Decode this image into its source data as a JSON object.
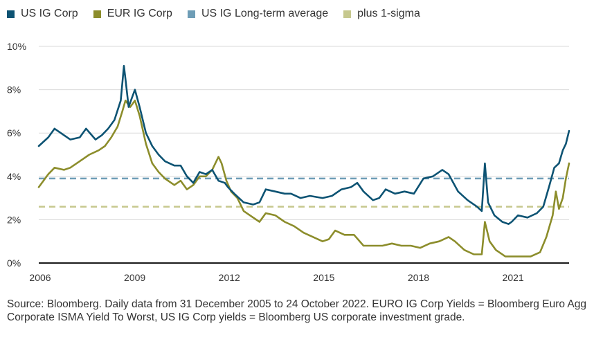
{
  "legend": [
    {
      "label": "US IG Corp",
      "color": "#0d5373"
    },
    {
      "label": "EUR IG Corp",
      "color": "#8c8d2b"
    },
    {
      "label": "US IG Long-term average",
      "color": "#6e9db6"
    },
    {
      "label": "plus 1-sigma",
      "color": "#c6c88e"
    }
  ],
  "source_note": "Source: Bloomberg. Daily data from 31 December 2005 to 24 October 2022. EURO IG Corp Yields = Bloomberg Euro Agg Corporate ISMA Yield To Worst, US IG Corp yields = Bloomberg US corporate investment grade.",
  "chart_data": {
    "type": "line",
    "title": "",
    "xlabel": "",
    "ylabel": "",
    "xlim": [
      2006.0,
      2022.82
    ],
    "ylim": [
      0,
      10
    ],
    "x_ticks": [
      "2006",
      "2009",
      "2012",
      "2015",
      "2018",
      "2021"
    ],
    "x_tick_values": [
      2006,
      2009,
      2012,
      2015,
      2018,
      2021
    ],
    "y_ticks": [
      "0%",
      "2%",
      "4%",
      "6%",
      "8%",
      "10%"
    ],
    "y_tick_values": [
      0,
      2,
      4,
      6,
      8,
      10
    ],
    "grid": true,
    "legend_position": "top",
    "series": [
      {
        "name": "US IG Corp",
        "color": "#0d5373",
        "points": [
          [
            2006.0,
            5.4
          ],
          [
            2006.3,
            5.8
          ],
          [
            2006.5,
            6.2
          ],
          [
            2006.8,
            5.9
          ],
          [
            2007.0,
            5.7
          ],
          [
            2007.3,
            5.8
          ],
          [
            2007.5,
            6.2
          ],
          [
            2007.8,
            5.7
          ],
          [
            2008.0,
            5.9
          ],
          [
            2008.2,
            6.2
          ],
          [
            2008.4,
            6.6
          ],
          [
            2008.6,
            7.5
          ],
          [
            2008.7,
            9.1
          ],
          [
            2008.75,
            8.5
          ],
          [
            2008.85,
            7.2
          ],
          [
            2008.95,
            7.6
          ],
          [
            2009.05,
            8.0
          ],
          [
            2009.2,
            7.2
          ],
          [
            2009.4,
            6.0
          ],
          [
            2009.6,
            5.4
          ],
          [
            2009.8,
            5.0
          ],
          [
            2010.0,
            4.7
          ],
          [
            2010.3,
            4.5
          ],
          [
            2010.5,
            4.5
          ],
          [
            2010.7,
            4.0
          ],
          [
            2010.9,
            3.7
          ],
          [
            2011.1,
            4.2
          ],
          [
            2011.3,
            4.1
          ],
          [
            2011.5,
            4.3
          ],
          [
            2011.7,
            3.8
          ],
          [
            2011.9,
            3.7
          ],
          [
            2012.0,
            3.5
          ],
          [
            2012.2,
            3.2
          ],
          [
            2012.5,
            2.8
          ],
          [
            2012.8,
            2.7
          ],
          [
            2013.0,
            2.8
          ],
          [
            2013.2,
            3.4
          ],
          [
            2013.5,
            3.3
          ],
          [
            2013.8,
            3.2
          ],
          [
            2014.0,
            3.2
          ],
          [
            2014.3,
            3.0
          ],
          [
            2014.6,
            3.1
          ],
          [
            2015.0,
            3.0
          ],
          [
            2015.3,
            3.1
          ],
          [
            2015.6,
            3.4
          ],
          [
            2015.9,
            3.5
          ],
          [
            2016.1,
            3.7
          ],
          [
            2016.3,
            3.3
          ],
          [
            2016.6,
            2.9
          ],
          [
            2016.8,
            3.0
          ],
          [
            2017.0,
            3.4
          ],
          [
            2017.3,
            3.2
          ],
          [
            2017.6,
            3.3
          ],
          [
            2017.9,
            3.2
          ],
          [
            2018.2,
            3.9
          ],
          [
            2018.5,
            4.0
          ],
          [
            2018.8,
            4.3
          ],
          [
            2019.0,
            4.1
          ],
          [
            2019.3,
            3.3
          ],
          [
            2019.6,
            2.9
          ],
          [
            2019.9,
            2.6
          ],
          [
            2020.05,
            2.4
          ],
          [
            2020.15,
            4.6
          ],
          [
            2020.25,
            2.8
          ],
          [
            2020.45,
            2.2
          ],
          [
            2020.7,
            1.9
          ],
          [
            2020.9,
            1.8
          ],
          [
            2021.0,
            1.9
          ],
          [
            2021.2,
            2.2
          ],
          [
            2021.5,
            2.1
          ],
          [
            2021.8,
            2.3
          ],
          [
            2022.0,
            2.6
          ],
          [
            2022.2,
            3.6
          ],
          [
            2022.35,
            4.4
          ],
          [
            2022.5,
            4.6
          ],
          [
            2022.62,
            5.2
          ],
          [
            2022.72,
            5.5
          ],
          [
            2022.82,
            6.1
          ]
        ]
      },
      {
        "name": "EUR IG Corp",
        "color": "#8c8d2b",
        "points": [
          [
            2006.0,
            3.5
          ],
          [
            2006.3,
            4.1
          ],
          [
            2006.5,
            4.4
          ],
          [
            2006.8,
            4.3
          ],
          [
            2007.0,
            4.4
          ],
          [
            2007.3,
            4.7
          ],
          [
            2007.6,
            5.0
          ],
          [
            2007.9,
            5.2
          ],
          [
            2008.1,
            5.4
          ],
          [
            2008.3,
            5.8
          ],
          [
            2008.5,
            6.3
          ],
          [
            2008.65,
            7.0
          ],
          [
            2008.75,
            7.5
          ],
          [
            2008.9,
            7.2
          ],
          [
            2009.05,
            7.5
          ],
          [
            2009.2,
            6.8
          ],
          [
            2009.4,
            5.5
          ],
          [
            2009.6,
            4.6
          ],
          [
            2009.8,
            4.2
          ],
          [
            2010.0,
            3.9
          ],
          [
            2010.3,
            3.6
          ],
          [
            2010.5,
            3.8
          ],
          [
            2010.7,
            3.4
          ],
          [
            2010.9,
            3.6
          ],
          [
            2011.1,
            4.0
          ],
          [
            2011.3,
            4.0
          ],
          [
            2011.5,
            4.3
          ],
          [
            2011.7,
            4.9
          ],
          [
            2011.8,
            4.6
          ],
          [
            2011.95,
            3.8
          ],
          [
            2012.1,
            3.3
          ],
          [
            2012.3,
            3.0
          ],
          [
            2012.5,
            2.4
          ],
          [
            2012.8,
            2.1
          ],
          [
            2013.0,
            1.9
          ],
          [
            2013.2,
            2.3
          ],
          [
            2013.5,
            2.2
          ],
          [
            2013.8,
            1.9
          ],
          [
            2014.1,
            1.7
          ],
          [
            2014.4,
            1.4
          ],
          [
            2014.7,
            1.2
          ],
          [
            2015.0,
            1.0
          ],
          [
            2015.2,
            1.1
          ],
          [
            2015.4,
            1.5
          ],
          [
            2015.7,
            1.3
          ],
          [
            2016.0,
            1.3
          ],
          [
            2016.3,
            0.8
          ],
          [
            2016.6,
            0.8
          ],
          [
            2016.9,
            0.8
          ],
          [
            2017.2,
            0.9
          ],
          [
            2017.5,
            0.8
          ],
          [
            2017.8,
            0.8
          ],
          [
            2018.1,
            0.7
          ],
          [
            2018.4,
            0.9
          ],
          [
            2018.7,
            1.0
          ],
          [
            2019.0,
            1.2
          ],
          [
            2019.2,
            1.0
          ],
          [
            2019.5,
            0.6
          ],
          [
            2019.8,
            0.4
          ],
          [
            2020.05,
            0.4
          ],
          [
            2020.15,
            1.9
          ],
          [
            2020.3,
            1.0
          ],
          [
            2020.5,
            0.6
          ],
          [
            2020.8,
            0.3
          ],
          [
            2021.0,
            0.3
          ],
          [
            2021.3,
            0.3
          ],
          [
            2021.6,
            0.3
          ],
          [
            2021.9,
            0.5
          ],
          [
            2022.1,
            1.2
          ],
          [
            2022.3,
            2.2
          ],
          [
            2022.4,
            3.3
          ],
          [
            2022.5,
            2.5
          ],
          [
            2022.62,
            3.0
          ],
          [
            2022.72,
            3.9
          ],
          [
            2022.82,
            4.6
          ]
        ]
      },
      {
        "name": "US IG Long-term average",
        "color": "#6e9db6",
        "dashed": true,
        "constant": 3.9
      },
      {
        "name": "plus 1-sigma",
        "color": "#c6c88e",
        "dashed": true,
        "constant": 2.6
      }
    ]
  }
}
